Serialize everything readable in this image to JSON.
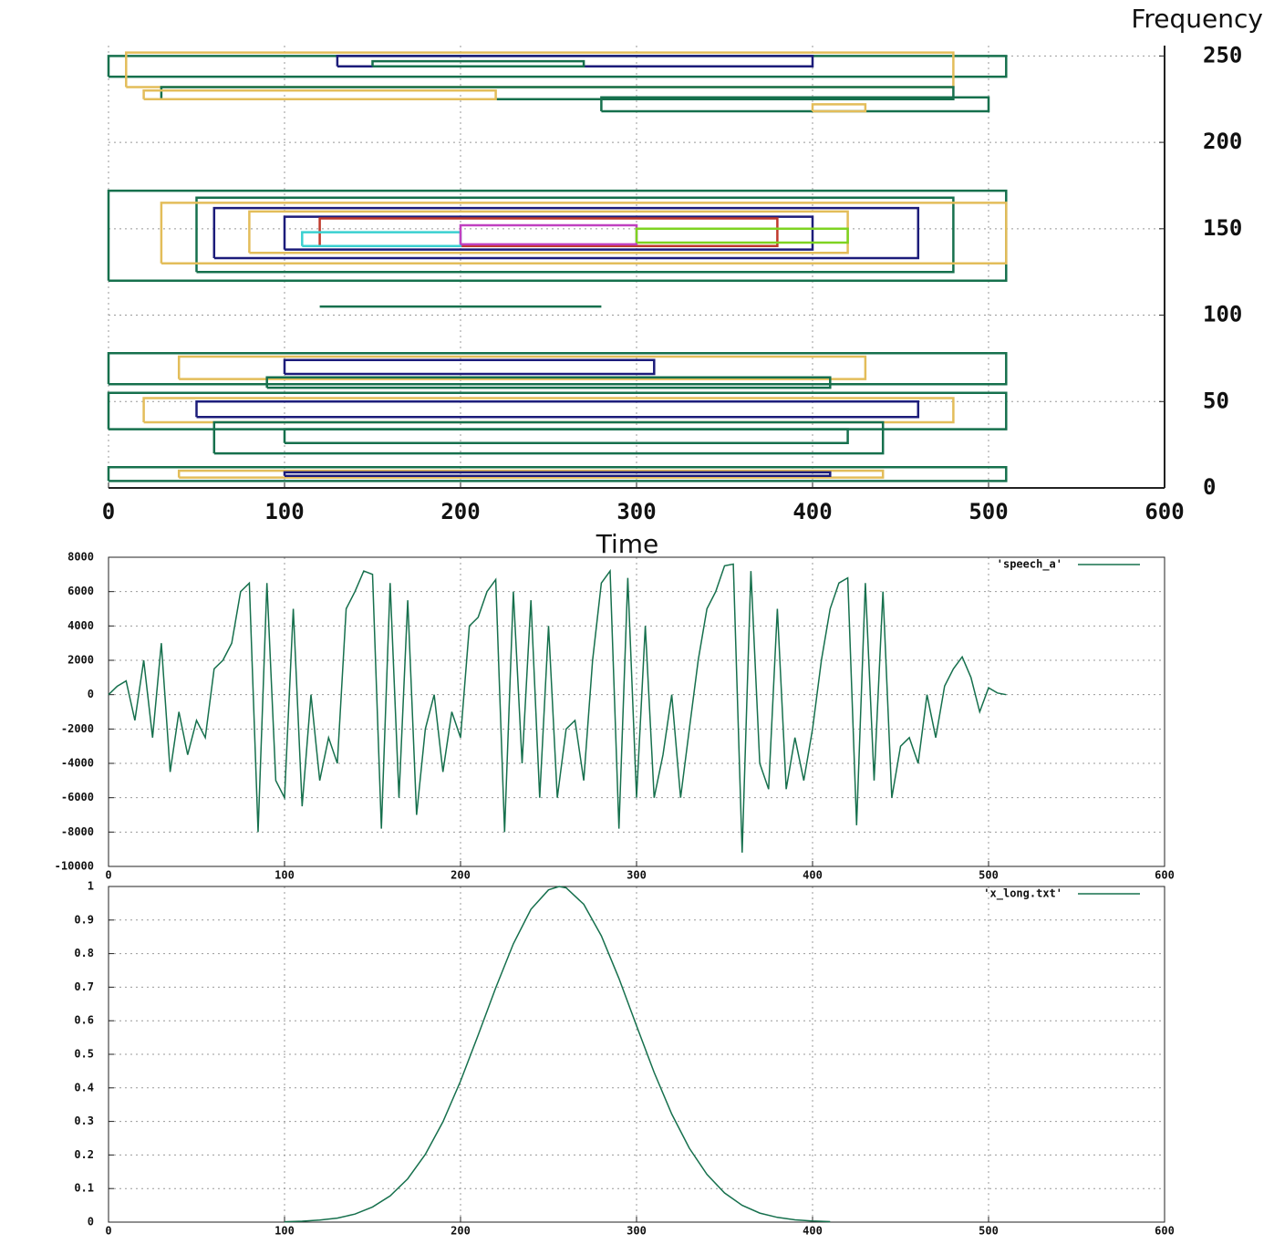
{
  "chart_data": [
    {
      "type": "contour",
      "title": "Frequency",
      "x_label": "Time",
      "xlim": [
        0,
        600
      ],
      "ylim": [
        0,
        256
      ],
      "xticks": [
        0,
        100,
        200,
        300,
        400,
        500,
        600
      ],
      "yticks": [
        0,
        50,
        100,
        150,
        200,
        250
      ],
      "grid": true,
      "series": [
        {
          "color": "#16704d",
          "x": [
            0,
            510,
            510,
            0,
            0
          ],
          "y": [
            238,
            238,
            250,
            250,
            238
          ]
        },
        {
          "color": "#e3bd5a",
          "x": [
            10,
            480,
            480,
            10,
            10
          ],
          "y": [
            232,
            232,
            252,
            252,
            232
          ]
        },
        {
          "color": "#1c1c7a",
          "x": [
            130,
            400,
            400,
            130,
            130
          ],
          "y": [
            244,
            244,
            250,
            250,
            244
          ]
        },
        {
          "color": "#16704d",
          "x": [
            30,
            480,
            480,
            30,
            30
          ],
          "y": [
            225,
            225,
            232,
            232,
            225
          ]
        },
        {
          "color": "#e3bd5a",
          "x": [
            20,
            220,
            220,
            20,
            20
          ],
          "y": [
            225,
            225,
            230,
            230,
            225
          ]
        },
        {
          "color": "#16704d",
          "x": [
            280,
            500,
            500,
            280,
            280
          ],
          "y": [
            218,
            218,
            226,
            226,
            218
          ]
        },
        {
          "color": "#e3bd5a",
          "x": [
            400,
            430,
            430,
            400,
            400
          ],
          "y": [
            218,
            218,
            222,
            222,
            218
          ]
        },
        {
          "color": "#16704d",
          "x": [
            150,
            270,
            270,
            150,
            150
          ],
          "y": [
            244,
            244,
            247,
            247,
            244
          ]
        },
        {
          "color": "#16704d",
          "x": [
            0,
            510,
            510,
            0,
            0
          ],
          "y": [
            120,
            120,
            172,
            172,
            120
          ]
        },
        {
          "color": "#16704d",
          "x": [
            50,
            480,
            480,
            50,
            50
          ],
          "y": [
            125,
            125,
            168,
            168,
            125
          ]
        },
        {
          "color": "#e3bd5a",
          "x": [
            30,
            510,
            510,
            30,
            30
          ],
          "y": [
            130,
            130,
            165,
            165,
            130
          ]
        },
        {
          "color": "#1c1c7a",
          "x": [
            60,
            460,
            460,
            60,
            60
          ],
          "y": [
            133,
            133,
            162,
            162,
            133
          ]
        },
        {
          "color": "#e3bd5a",
          "x": [
            80,
            420,
            420,
            80,
            80
          ],
          "y": [
            136,
            136,
            160,
            160,
            136
          ]
        },
        {
          "color": "#1c1c7a",
          "x": [
            100,
            400,
            400,
            100,
            100
          ],
          "y": [
            138,
            138,
            157,
            157,
            138
          ]
        },
        {
          "color": "#c0392b",
          "x": [
            120,
            380,
            380,
            120,
            120
          ],
          "y": [
            140,
            140,
            156,
            156,
            140
          ]
        },
        {
          "color": "#3ad0d0",
          "x": [
            110,
            200,
            200,
            110,
            110
          ],
          "y": [
            140,
            140,
            148,
            148,
            140
          ]
        },
        {
          "color": "#c040c0",
          "x": [
            200,
            300,
            300,
            200,
            200
          ],
          "y": [
            141,
            141,
            152,
            152,
            141
          ]
        },
        {
          "color": "#7ed321",
          "x": [
            300,
            420,
            420,
            300,
            300
          ],
          "y": [
            142,
            142,
            150,
            150,
            142
          ]
        },
        {
          "color": "#16704d",
          "x": [
            120,
            280
          ],
          "y": [
            105,
            105
          ]
        },
        {
          "color": "#16704d",
          "x": [
            0,
            510,
            510,
            0,
            0
          ],
          "y": [
            60,
            60,
            78,
            78,
            60
          ]
        },
        {
          "color": "#e3bd5a",
          "x": [
            40,
            430,
            430,
            40,
            40
          ],
          "y": [
            63,
            63,
            76,
            76,
            63
          ]
        },
        {
          "color": "#1c1c7a",
          "x": [
            100,
            310,
            310,
            100,
            100
          ],
          "y": [
            66,
            66,
            74,
            74,
            66
          ]
        },
        {
          "color": "#16704d",
          "x": [
            90,
            410,
            410,
            90,
            90
          ],
          "y": [
            58,
            58,
            64,
            64,
            58
          ]
        },
        {
          "color": "#16704d",
          "x": [
            0,
            510,
            510,
            0,
            0
          ],
          "y": [
            34,
            34,
            55,
            55,
            34
          ]
        },
        {
          "color": "#e3bd5a",
          "x": [
            20,
            480,
            480,
            20,
            20
          ],
          "y": [
            38,
            38,
            52,
            52,
            38
          ]
        },
        {
          "color": "#1c1c7a",
          "x": [
            50,
            460,
            460,
            50,
            50
          ],
          "y": [
            41,
            41,
            50,
            50,
            41
          ]
        },
        {
          "color": "#16704d",
          "x": [
            60,
            440,
            440,
            60,
            60
          ],
          "y": [
            20,
            20,
            38,
            38,
            20
          ]
        },
        {
          "color": "#16704d",
          "x": [
            100,
            420,
            420,
            100,
            100
          ],
          "y": [
            26,
            26,
            34,
            34,
            26
          ]
        },
        {
          "color": "#16704d",
          "x": [
            0,
            510,
            510,
            0,
            0
          ],
          "y": [
            4,
            4,
            12,
            12,
            4
          ]
        },
        {
          "color": "#e3bd5a",
          "x": [
            40,
            440,
            440,
            40,
            40
          ],
          "y": [
            6,
            6,
            10,
            10,
            6
          ]
        },
        {
          "color": "#1c1c7a",
          "x": [
            100,
            410,
            410,
            100,
            100
          ],
          "y": [
            7,
            7,
            9,
            9,
            7
          ]
        }
      ]
    },
    {
      "type": "line",
      "xlim": [
        0,
        600
      ],
      "ylim": [
        -10000,
        8000
      ],
      "xticks": [
        0,
        100,
        200,
        300,
        400,
        500,
        600
      ],
      "yticks": [
        -10000,
        -8000,
        -6000,
        -4000,
        -2000,
        0,
        2000,
        4000,
        6000,
        8000
      ],
      "grid": true,
      "x": [
        0,
        5,
        10,
        15,
        20,
        25,
        30,
        35,
        40,
        45,
        50,
        55,
        60,
        65,
        70,
        75,
        80,
        85,
        90,
        95,
        100,
        105,
        110,
        115,
        120,
        125,
        130,
        135,
        140,
        145,
        150,
        155,
        160,
        165,
        170,
        175,
        180,
        185,
        190,
        195,
        200,
        205,
        210,
        215,
        220,
        225,
        230,
        235,
        240,
        245,
        250,
        255,
        260,
        265,
        270,
        275,
        280,
        285,
        290,
        295,
        300,
        305,
        310,
        315,
        320,
        325,
        330,
        335,
        340,
        345,
        350,
        355,
        360,
        365,
        370,
        375,
        380,
        385,
        390,
        395,
        400,
        405,
        410,
        415,
        420,
        425,
        430,
        435,
        440,
        445,
        450,
        455,
        460,
        465,
        470,
        475,
        480,
        485,
        490,
        495,
        500,
        505,
        510
      ],
      "series": [
        {
          "name": "'speech_a'",
          "color": "#16704d",
          "values": [
            0,
            500,
            800,
            -1500,
            2000,
            -2500,
            3000,
            -4500,
            -1000,
            -3500,
            -1500,
            -2500,
            1500,
            2000,
            3000,
            6000,
            6500,
            -8000,
            6500,
            -5000,
            -6000,
            5000,
            -6500,
            0,
            -5000,
            -2500,
            -4000,
            5000,
            6000,
            7200,
            7000,
            -7800,
            6500,
            -6000,
            5500,
            -7000,
            -2000,
            0,
            -4500,
            -1000,
            -2500,
            4000,
            4500,
            6000,
            6700,
            -8000,
            6000,
            -4000,
            5500,
            -6000,
            4000,
            -6000,
            -2000,
            -1500,
            -5000,
            2000,
            6500,
            7200,
            -7800,
            6800,
            -6000,
            4000,
            -6000,
            -3500,
            0,
            -6000,
            -2000,
            2000,
            5000,
            6000,
            7500,
            7600,
            -9200,
            7200,
            -4000,
            -5500,
            5000,
            -5500,
            -2500,
            -5000,
            -2000,
            2000,
            5000,
            6500,
            6800,
            -7600,
            6500,
            -5000,
            6000,
            -6000,
            -3000,
            -2500,
            -4000,
            0,
            -2500,
            500,
            1500,
            2200,
            1000,
            -1000,
            400,
            100,
            0
          ]
        }
      ]
    },
    {
      "type": "line",
      "xlim": [
        0,
        600
      ],
      "ylim": [
        0,
        1
      ],
      "xticks": [
        0,
        100,
        200,
        300,
        400,
        500,
        600
      ],
      "yticks": [
        0,
        0.1,
        0.2,
        0.3,
        0.4,
        0.5,
        0.6,
        0.7,
        0.8,
        0.9,
        1
      ],
      "grid": true,
      "x": [
        100,
        110,
        120,
        130,
        140,
        150,
        160,
        170,
        180,
        190,
        200,
        210,
        220,
        230,
        240,
        250,
        256,
        260,
        270,
        280,
        290,
        300,
        310,
        320,
        330,
        340,
        350,
        360,
        370,
        380,
        390,
        400,
        410
      ],
      "series": [
        {
          "name": "'x_long.txt'",
          "color": "#16704d",
          "values": [
            0.0012,
            0.0027,
            0.006,
            0.012,
            0.024,
            0.045,
            0.078,
            0.129,
            0.202,
            0.299,
            0.42,
            0.557,
            0.698,
            0.829,
            0.932,
            0.99,
            1,
            0.996,
            0.947,
            0.853,
            0.726,
            0.585,
            0.446,
            0.322,
            0.22,
            0.142,
            0.087,
            0.05,
            0.027,
            0.014,
            0.0069,
            0.0032,
            0.0014
          ]
        }
      ]
    }
  ]
}
